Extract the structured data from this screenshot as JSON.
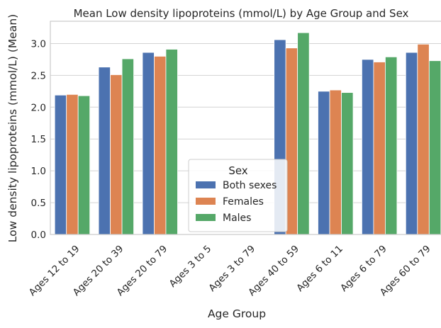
{
  "chart_data": {
    "type": "bar",
    "title": "Mean Low density lipoproteins (mmol/L) by Age Group and Sex",
    "xlabel": "Age Group",
    "ylabel": "Low density lipoproteins (mmol/L) (Mean)",
    "categories": [
      "Ages 12 to 19",
      "Ages 20 to 39",
      "Ages 20 to 79",
      "Ages 3 to 5",
      "Ages 3 to 79",
      "Ages 40 to 59",
      "Ages 6 to 11",
      "Ages 6 to 79",
      "Ages 60 to 79"
    ],
    "series": [
      {
        "name": "Both sexes",
        "color": "#4c72b0",
        "values": [
          2.19,
          2.63,
          2.86,
          null,
          null,
          3.06,
          2.25,
          2.75,
          2.86
        ]
      },
      {
        "name": "Females",
        "color": "#dd8452",
        "values": [
          2.2,
          2.51,
          2.8,
          null,
          null,
          2.93,
          2.27,
          2.71,
          2.99
        ]
      },
      {
        "name": "Males",
        "color": "#55a868",
        "values": [
          2.18,
          2.76,
          2.91,
          null,
          null,
          3.17,
          2.23,
          2.79,
          2.73
        ]
      }
    ],
    "ylim": [
      0,
      3.35
    ],
    "yticks": [
      "0.0",
      "0.5",
      "1.0",
      "1.5",
      "2.0",
      "2.5",
      "3.0"
    ],
    "grid": "horizontal",
    "legend": {
      "title": "Sex",
      "placement": "lower center"
    }
  }
}
